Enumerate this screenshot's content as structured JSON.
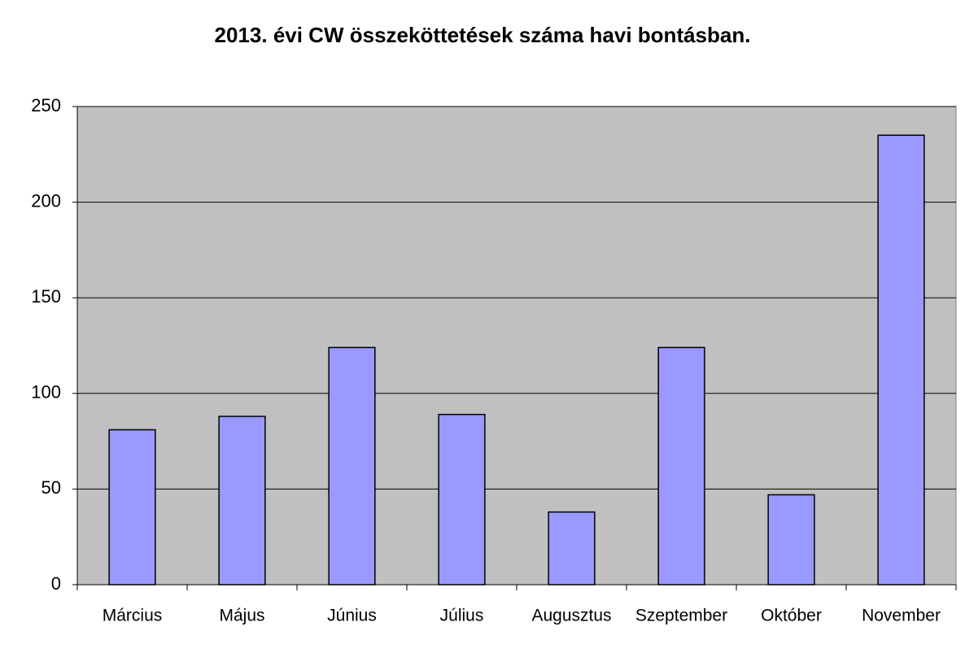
{
  "chart_data": {
    "type": "bar",
    "title": "2013. évi CW összeköttetések száma havi bontásban.",
    "categories": [
      "Március",
      "Május",
      "Június",
      "Július",
      "Augusztus",
      "Szeptember",
      "Október",
      "November"
    ],
    "values": [
      81,
      88,
      124,
      89,
      38,
      124,
      47,
      235
    ],
    "color": "#9999ff",
    "plot_background": "#c0c0c0",
    "ylim": [
      0,
      250
    ],
    "yticks": [
      0,
      50,
      100,
      150,
      200,
      250
    ],
    "grid": true
  }
}
